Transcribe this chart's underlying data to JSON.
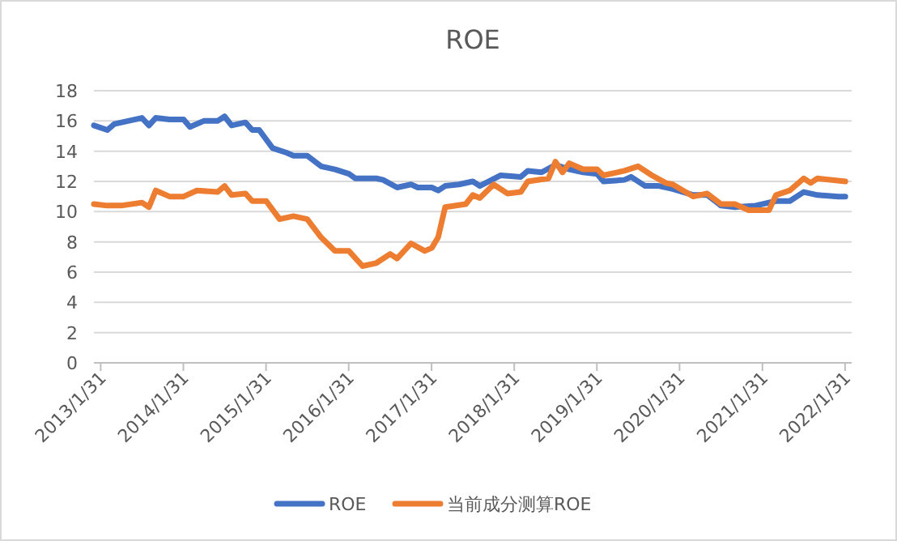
{
  "chart_data": {
    "type": "line",
    "title": "ROE",
    "x": [
      "2013-01",
      "2013-03",
      "2013-04",
      "2013-06",
      "2013-08",
      "2013-09",
      "2013-10",
      "2013-12",
      "2014-02",
      "2014-03",
      "2014-05",
      "2014-07",
      "2014-08",
      "2014-09",
      "2014-11",
      "2014-12",
      "2015-01",
      "2015-03",
      "2015-05",
      "2015-06",
      "2015-08",
      "2015-10",
      "2015-12",
      "2016-02",
      "2016-03",
      "2016-06",
      "2016-07",
      "2016-09",
      "2016-11",
      "2016-12",
      "2017-02",
      "2017-03",
      "2017-04",
      "2017-06",
      "2017-08",
      "2017-09",
      "2017-12",
      "2018-03",
      "2018-04",
      "2018-06",
      "2018-08",
      "2018-10",
      "2018-12",
      "2019-02",
      "2019-03",
      "2019-06",
      "2019-07",
      "2019-09",
      "2019-11",
      "2020-01",
      "2020-04",
      "2020-06",
      "2020-08",
      "2020-10",
      "2021-01",
      "2021-04",
      "2021-06",
      "2021-08",
      "2021-10",
      "2022-01",
      "2022-02"
    ],
    "series": [
      {
        "name": "ROE",
        "color": "#4472c4",
        "values": [
          15.7,
          15.4,
          15.8,
          16.0,
          16.2,
          15.7,
          16.2,
          16.1,
          16.1,
          15.6,
          16.0,
          16.0,
          16.3,
          15.7,
          15.9,
          15.4,
          15.4,
          14.2,
          13.9,
          13.7,
          13.7,
          13.0,
          12.8,
          12.5,
          12.2,
          12.2,
          12.1,
          11.6,
          11.8,
          11.6,
          11.6,
          11.4,
          11.7,
          11.8,
          12.0,
          11.7,
          12.4,
          12.3,
          12.7,
          12.6,
          13.1,
          12.8,
          12.6,
          12.5,
          12.0,
          12.1,
          12.3,
          11.7,
          11.7,
          11.5,
          11.1,
          11.1,
          10.4,
          10.3,
          10.4,
          10.7,
          10.7,
          11.3,
          11.1,
          11.0,
          11.0
        ]
      },
      {
        "name": "当前成分测算ROE",
        "color": "#ed7d31",
        "x": [
          "2013-01",
          "2013-03",
          "2013-05",
          "2013-08",
          "2013-09",
          "2013-10",
          "2013-12",
          "2014-02",
          "2014-04",
          "2014-07",
          "2014-08",
          "2014-09",
          "2014-11",
          "2014-12",
          "2015-02",
          "2015-04",
          "2015-06",
          "2015-08",
          "2015-10",
          "2015-12",
          "2016-02",
          "2016-04",
          "2016-06",
          "2016-08",
          "2016-09",
          "2016-11",
          "2017-01",
          "2017-02",
          "2017-03",
          "2017-04",
          "2017-07",
          "2017-08",
          "2017-09",
          "2017-11",
          "2018-01",
          "2018-03",
          "2018-04",
          "2018-07",
          "2018-08",
          "2018-09",
          "2018-10",
          "2018-12",
          "2019-02",
          "2019-03",
          "2019-06",
          "2019-08",
          "2019-10",
          "2019-12",
          "2020-01",
          "2020-04",
          "2020-06",
          "2020-08",
          "2020-10",
          "2020-12",
          "2021-03",
          "2021-04",
          "2021-06",
          "2021-08",
          "2021-09",
          "2021-10",
          "2022-02"
        ],
        "values": [
          10.5,
          10.4,
          10.4,
          10.6,
          10.3,
          11.4,
          11.0,
          11.0,
          11.4,
          11.3,
          11.7,
          11.1,
          11.2,
          10.7,
          10.7,
          9.5,
          9.7,
          9.5,
          8.3,
          7.4,
          7.4,
          6.4,
          6.6,
          7.2,
          6.9,
          7.9,
          7.4,
          7.6,
          8.3,
          10.3,
          10.5,
          11.1,
          10.9,
          11.8,
          11.2,
          11.3,
          12.0,
          12.2,
          13.3,
          12.6,
          13.2,
          12.8,
          12.8,
          12.4,
          12.7,
          13.0,
          12.4,
          11.9,
          11.8,
          11.0,
          11.2,
          10.5,
          10.5,
          10.1,
          10.1,
          11.1,
          11.4,
          12.2,
          11.9,
          12.2,
          12.0
        ]
      }
    ],
    "xlim": [
      "2013-01-01",
      "2022-03-01"
    ],
    "xticks": [
      {
        "value": "2013-01-31",
        "label": "2013/1/31"
      },
      {
        "value": "2014-01-31",
        "label": "2014/1/31"
      },
      {
        "value": "2015-01-31",
        "label": "2015/1/31"
      },
      {
        "value": "2016-01-31",
        "label": "2016/1/31"
      },
      {
        "value": "2017-01-31",
        "label": "2017/1/31"
      },
      {
        "value": "2018-01-31",
        "label": "2018/1/31"
      },
      {
        "value": "2019-01-31",
        "label": "2019/1/31"
      },
      {
        "value": "2020-01-31",
        "label": "2020/1/31"
      },
      {
        "value": "2021-01-31",
        "label": "2021/1/31"
      },
      {
        "value": "2022-01-31",
        "label": "2022/1/31"
      }
    ],
    "ylim": [
      0,
      18
    ],
    "yticks": [
      0,
      2,
      4,
      6,
      8,
      10,
      12,
      14,
      16,
      18
    ],
    "grid": "y",
    "legend": "bottom",
    "marker": "none",
    "line_style": "solid"
  }
}
